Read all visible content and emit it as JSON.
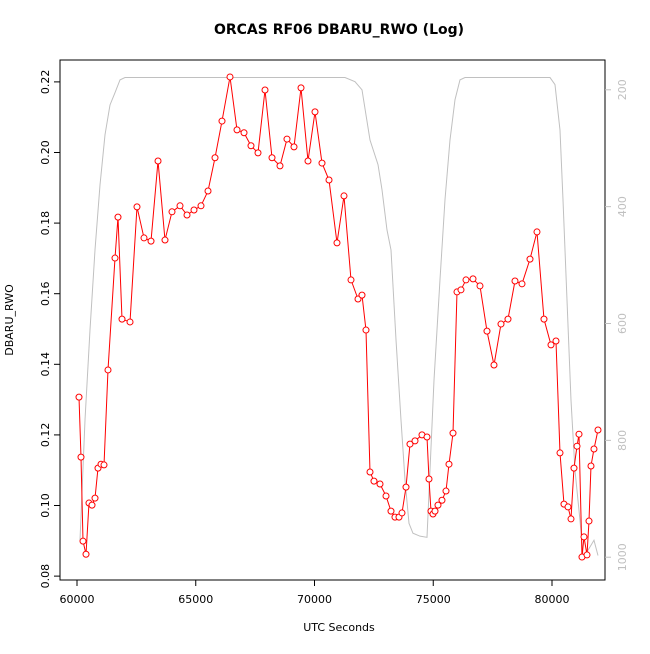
{
  "chart_data": {
    "type": "line",
    "title": "ORCAS RF06 DBARU_RWO (Log)",
    "xlabel": "UTC Seconds",
    "ylabel": "DBARU_RWO",
    "xlim": [
      59284,
      82232
    ],
    "ylim": [
      0.0789,
      0.2262
    ],
    "y2lim": [
      1039,
      149
    ],
    "xticks": [
      60000,
      65000,
      70000,
      75000,
      80000
    ],
    "yticks": [
      0.08,
      {
        "value": 0.1,
        "label": "0.10"
      },
      0.12,
      0.14,
      0.16,
      0.18,
      {
        "value": 0.2,
        "label": "0.20"
      },
      0.22
    ],
    "y2ticks": [
      200,
      400,
      600,
      800,
      1000
    ],
    "series": [
      {
        "color": "#ff0000",
        "markers": true,
        "x": [
          60084,
          60168,
          60253,
          60379,
          60505,
          60632,
          60758,
          60884,
          61011,
          61137,
          61305,
          61600,
          61726,
          61895,
          62232,
          62526,
          62821,
          63116,
          63411,
          63705,
          64000,
          64337,
          64632,
          64926,
          65221,
          65516,
          65811,
          66105,
          66442,
          66737,
          67032,
          67326,
          67621,
          67916,
          68211,
          68547,
          68842,
          69137,
          69432,
          69726,
          70021,
          70316,
          70611,
          70947,
          71242,
          71537,
          71832,
          72000,
          72168,
          72337,
          72505,
          72758,
          73011,
          73221,
          73389,
          73558,
          73684,
          73853,
          74021,
          74232,
          74526,
          74737,
          74821,
          74905,
          74989,
          75074,
          75200,
          75368,
          75537,
          75663,
          75832,
          76000,
          76168,
          76379,
          76674,
          76968,
          77263,
          77558,
          77853,
          78147,
          78442,
          78737,
          79074,
          79368,
          79663,
          79958,
          80168,
          80337,
          80505,
          80674,
          80800,
          80926,
          81053,
          81137,
          81263,
          81347,
          81474,
          81558,
          81642,
          81768,
          81937
        ],
        "values": [
          0.1307,
          0.1137,
          0.0899,
          0.0862,
          0.1007,
          0.1001,
          0.1021,
          0.1106,
          0.1117,
          0.1115,
          0.1384,
          0.1701,
          0.1817,
          0.1528,
          0.152,
          0.1846,
          0.1758,
          0.1749,
          0.1976,
          0.1752,
          0.1832,
          0.1849,
          0.1823,
          0.1837,
          0.1849,
          0.1891,
          0.1985,
          0.2089,
          0.2214,
          0.2064,
          0.2056,
          0.2019,
          0.1999,
          0.2177,
          0.1985,
          0.1962,
          0.2038,
          0.2016,
          0.2183,
          0.1976,
          0.2115,
          0.197,
          0.1922,
          0.1744,
          0.1877,
          0.1639,
          0.1585,
          0.1596,
          0.1497,
          0.1095,
          0.1069,
          0.1061,
          0.1027,
          0.0984,
          0.0967,
          0.0967,
          0.0979,
          0.1052,
          0.1174,
          0.1183,
          0.12,
          0.1194,
          0.1075,
          0.0984,
          0.0976,
          0.0984,
          0.1001,
          0.1015,
          0.1041,
          0.1117,
          0.1205,
          0.1605,
          0.1611,
          0.1639,
          0.1642,
          0.1622,
          0.1494,
          0.1398,
          0.1514,
          0.1528,
          0.1636,
          0.1628,
          0.1698,
          0.1775,
          0.1528,
          0.1455,
          0.1466,
          0.1149,
          0.1004,
          0.0996,
          0.0962,
          0.1106,
          0.1168,
          0.1202,
          0.0854,
          0.0911,
          0.086,
          0.0956,
          0.1112,
          0.116,
          0.1214
        ]
      },
      {
        "color": "#c0c0c0",
        "axis": "y2",
        "markers": false,
        "x": [
          60126,
          60337,
          60547,
          60758,
          60968,
          61179,
          61389,
          61600,
          61811,
          62021,
          63074,
          65179,
          69389,
          71284,
          71705,
          72000,
          72337,
          72674,
          72842,
          73053,
          73221,
          73432,
          73642,
          73811,
          73979,
          74147,
          74442,
          74737,
          74863,
          75032,
          75284,
          75495,
          75705,
          75916,
          76126,
          76337,
          79916,
          80126,
          80337,
          80463,
          80632,
          80800,
          80968,
          81179,
          81305,
          81516,
          81768,
          81937
        ],
        "values": [
          971,
          765,
          611,
          474,
          363,
          277,
          226,
          205,
          183,
          179,
          179,
          179,
          179,
          179,
          186,
          200,
          286,
          328,
          371,
          440,
          474,
          628,
          765,
          868,
          942,
          959,
          964,
          966,
          851,
          697,
          525,
          388,
          286,
          217,
          183,
          179,
          179,
          191,
          269,
          388,
          560,
          731,
          851,
          937,
          997,
          988,
          971,
          997
        ]
      }
    ]
  }
}
